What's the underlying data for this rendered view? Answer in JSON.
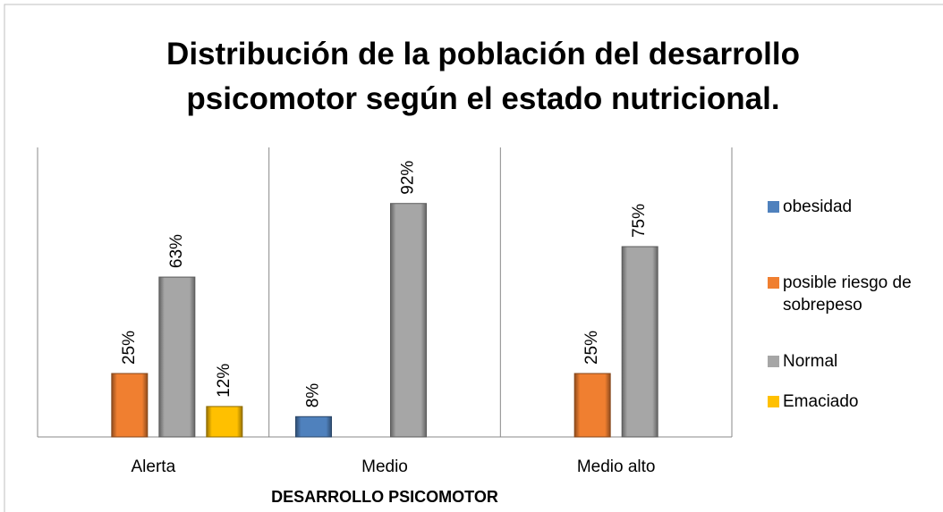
{
  "chart_data": {
    "type": "bar",
    "title": "Distribución de la población del desarrollo psicomotor según el estado nutricional.",
    "x_label": "DESARROLLO PSICOMOTOR",
    "categories": [
      "Alerta",
      "Medio",
      "Medio alto"
    ],
    "series": [
      {
        "name": "obesidad",
        "color": "#4f81bd",
        "values": [
          null,
          8,
          null
        ],
        "value_labels": [
          null,
          "8%",
          null
        ]
      },
      {
        "name": "posible riesgo de sobrepeso",
        "color": "#f07f30",
        "values": [
          25,
          null,
          25
        ],
        "value_labels": [
          "25%",
          null,
          "25%"
        ]
      },
      {
        "name": "Normal",
        "color": "#a6a6a6",
        "values": [
          63,
          92,
          75
        ],
        "value_labels": [
          "63%",
          "92%",
          "75%"
        ]
      },
      {
        "name": "Emaciado",
        "color": "#ffc000",
        "values": [
          12,
          null,
          null
        ],
        "value_labels": [
          "12%",
          null,
          null
        ]
      }
    ],
    "ylim": [
      0,
      100
    ],
    "legend": "right"
  }
}
